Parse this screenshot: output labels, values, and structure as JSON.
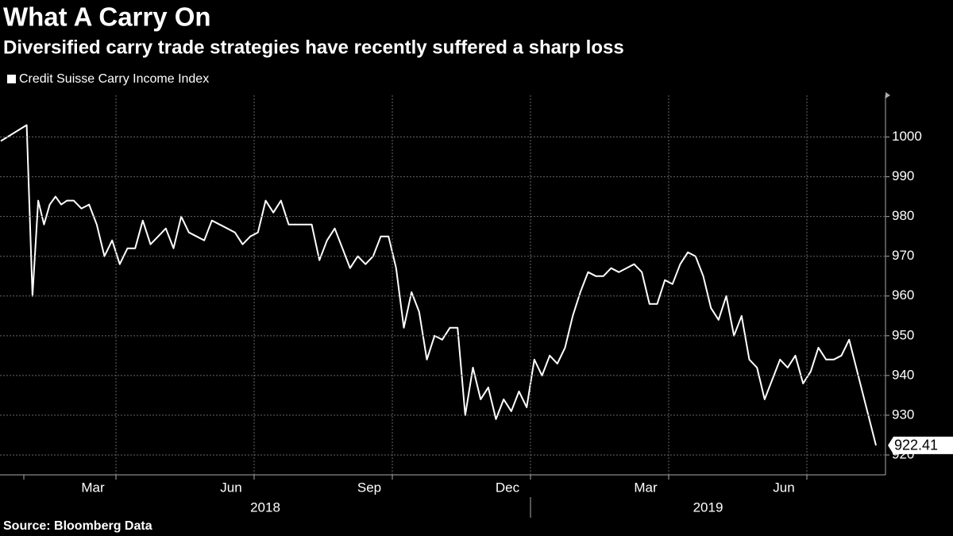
{
  "chart_data": {
    "type": "line",
    "title": "What A Carry On",
    "subtitle": "Diversified carry trade strategies have recently suffered a sharp loss",
    "source": "Source: Bloomberg Data",
    "series": [
      {
        "name": "Credit Suisse Carry Income Index",
        "color": "#ffffff",
        "values": [
          999,
          1003,
          960,
          984,
          978,
          983,
          985,
          983,
          984,
          984,
          982,
          983,
          978,
          970,
          974,
          968,
          972,
          972,
          979,
          973,
          975,
          977,
          972,
          980,
          976,
          975,
          974,
          979,
          978,
          977,
          976,
          973,
          975,
          976,
          984,
          981,
          984,
          978,
          978,
          978,
          978,
          969,
          974,
          977,
          972,
          967,
          970,
          968,
          970,
          975,
          975,
          967,
          952,
          961,
          956,
          944,
          950,
          949,
          952,
          952,
          930,
          942,
          934,
          937,
          929,
          934,
          931,
          936,
          932,
          944,
          940,
          945,
          943,
          947,
          955,
          961,
          966,
          965,
          965,
          967,
          966,
          967,
          968,
          966,
          958,
          958,
          964,
          963,
          968,
          971,
          970,
          965,
          957,
          954,
          960,
          950,
          955,
          944,
          942,
          934,
          939,
          944,
          942,
          945,
          938,
          941,
          947,
          944,
          944,
          945,
          949,
          922.41
        ],
        "last_label": "922.41"
      }
    ],
    "x": [
      "2018-01",
      "2018-02",
      "2018-02",
      "2018-02",
      "2018-02",
      "2018-02",
      "2018-02",
      "2018-02",
      "2018-02",
      "2018-03",
      "2018-03",
      "2018-03",
      "2018-03",
      "2018-03",
      "2018-03",
      "2018-04",
      "2018-04",
      "2018-04",
      "2018-04",
      "2018-04",
      "2018-04",
      "2018-05",
      "2018-05",
      "2018-05",
      "2018-05",
      "2018-05",
      "2018-05",
      "2018-06",
      "2018-06",
      "2018-06",
      "2018-06",
      "2018-06",
      "2018-06",
      "2018-07",
      "2018-07",
      "2018-07",
      "2018-07",
      "2018-07",
      "2018-07",
      "2018-08",
      "2018-08",
      "2018-08",
      "2018-08",
      "2018-08",
      "2018-08",
      "2018-09",
      "2018-09",
      "2018-09",
      "2018-09",
      "2018-09",
      "2018-09",
      "2018-10",
      "2018-10",
      "2018-10",
      "2018-10",
      "2018-10",
      "2018-10",
      "2018-11",
      "2018-11",
      "2018-11",
      "2018-11",
      "2018-11",
      "2018-11",
      "2018-12",
      "2018-12",
      "2018-12",
      "2018-12",
      "2018-12",
      "2018-12",
      "2019-01",
      "2019-01",
      "2019-01",
      "2019-01",
      "2019-01",
      "2019-01",
      "2019-02",
      "2019-02",
      "2019-02",
      "2019-02",
      "2019-02",
      "2019-02",
      "2019-03",
      "2019-03",
      "2019-03",
      "2019-03",
      "2019-03",
      "2019-03",
      "2019-04",
      "2019-04",
      "2019-04",
      "2019-04",
      "2019-04",
      "2019-04",
      "2019-05",
      "2019-05",
      "2019-05",
      "2019-05",
      "2019-05",
      "2019-05",
      "2019-06",
      "2019-06",
      "2019-06",
      "2019-06",
      "2019-06",
      "2019-06",
      "2019-07",
      "2019-07",
      "2019-07",
      "2019-07",
      "2019-07",
      "2019-07",
      "2019-08"
    ],
    "xticks": [
      {
        "value": "2018-03",
        "label": "Mar"
      },
      {
        "value": "2018-06",
        "label": "Jun"
      },
      {
        "value": "2018-09",
        "label": "Sep"
      },
      {
        "value": "2018-12",
        "label": "Dec"
      },
      {
        "value": "2019-03",
        "label": "Mar"
      },
      {
        "value": "2019-06",
        "label": "Jun"
      }
    ],
    "years": [
      "2018",
      "2019"
    ],
    "ylim": [
      915,
      1010.5
    ],
    "yticks": [
      920,
      930,
      940,
      950,
      960,
      970,
      980,
      990,
      1000
    ],
    "grid": true,
    "legend": "top-left"
  }
}
